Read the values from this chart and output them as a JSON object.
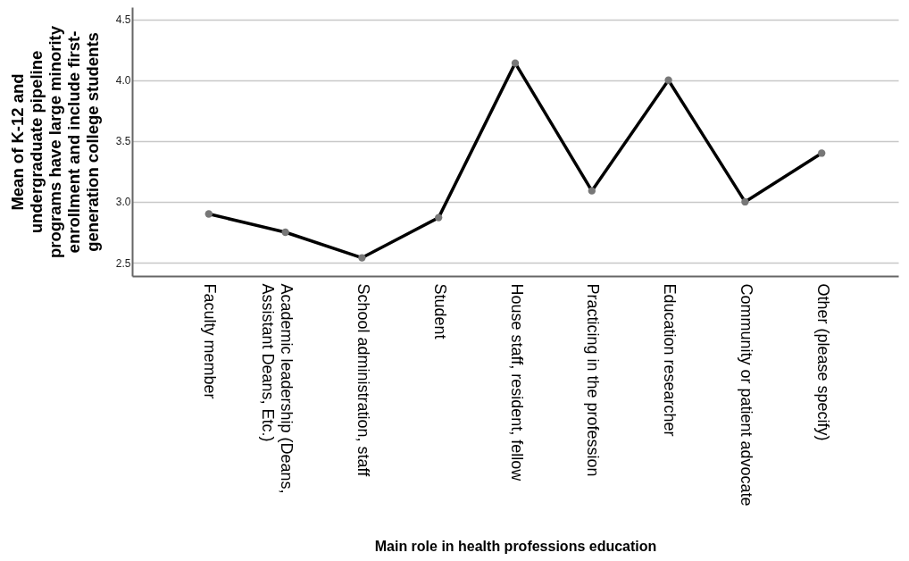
{
  "chart_data": {
    "type": "line",
    "xlabel": "Main role in health professions education",
    "ylabel": "Mean of K-12 and undergraduate pipeline programs have large minority enrollment and include first-generation college students",
    "categories": [
      "Faculty member",
      "Academic leadership (Deans, Assistant Deans, Etc.)",
      "School administration, staff",
      "Student",
      "House staff, resident, fellow",
      "Practicing in the profession",
      "Education researcher",
      "Community or patient advocate",
      "Other (please specify)"
    ],
    "series": [
      {
        "color": "#000000",
        "values": [
          2.9,
          2.75,
          2.54,
          2.87,
          4.14,
          3.09,
          4.0,
          3.0,
          3.4
        ]
      }
    ],
    "ylim": [
      2.39,
      4.6
    ],
    "yticks": [
      2.5,
      {
        "value": 3,
        "label": "3.0"
      },
      3.5,
      {
        "value": 4,
        "label": "4.0"
      },
      4.5
    ],
    "grid": "y",
    "marker": "circle",
    "line_style": "solid"
  }
}
